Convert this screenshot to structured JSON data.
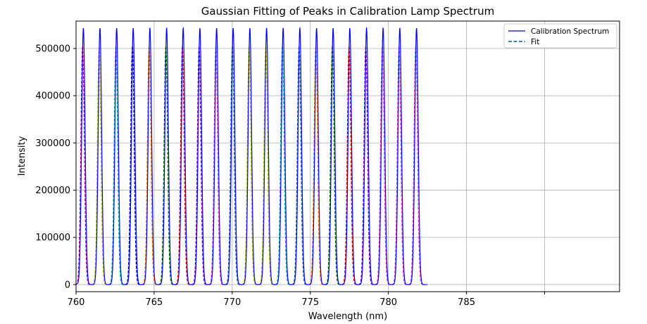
{
  "chart_data": {
    "type": "line",
    "title": "Gaussian Fitting of Peaks in Calibration Lamp Spectrum",
    "xlabel": "Wavelength (nm)",
    "ylabel": "Intensity",
    "xlim": [
      760,
      794.8
    ],
    "ylim": [
      -15000,
      558000
    ],
    "xticks": [
      760,
      765,
      770,
      775,
      780,
      785,
      790
    ],
    "xtick_labels": [
      "760",
      "765",
      "770",
      "775",
      "780",
      "785",
      ""
    ],
    "yticks": [
      0,
      100000,
      200000,
      300000,
      400000,
      500000
    ],
    "ytick_labels": [
      "0",
      "100000",
      "200000",
      "300000",
      "400000",
      "500000"
    ],
    "grid": true,
    "legend": {
      "placement": "top-right",
      "entries": [
        {
          "label": "Calibration Spectrum",
          "color": "#0000ff",
          "style": "solid"
        },
        {
          "label": "Fit",
          "color": "#1f77b4",
          "style": "dashed"
        }
      ]
    },
    "spectrum": {
      "name": "Calibration Spectrum",
      "color": "#0000ff",
      "x_range": [
        760.1,
        782.5
      ],
      "peak_height": 543000,
      "peak_sigma": 0.11,
      "peak_centers": [
        760.47,
        761.53,
        762.6,
        763.66,
        764.73,
        765.8,
        766.86,
        767.93,
        769.0,
        770.06,
        771.13,
        772.2,
        773.26,
        774.33,
        775.4,
        776.46,
        777.53,
        778.6,
        779.66,
        780.73,
        781.8
      ]
    },
    "fits": {
      "name": "Fit",
      "peak_height": 505000,
      "peak_sigma": 0.11,
      "half_width": 0.48,
      "centers": [
        760.42,
        761.48,
        762.55,
        763.61,
        764.68,
        765.75,
        766.81,
        767.88,
        768.95,
        770.01,
        771.08,
        772.15,
        773.21,
        774.28,
        775.35,
        776.41,
        777.48,
        778.55,
        779.61,
        780.68,
        781.75
      ],
      "colors": [
        "#bf00bf",
        "#bfbf00",
        "#00bfbf",
        "#0000ff",
        "#ff7f0e",
        "#008000",
        "#ff0000",
        "#8f00ff",
        "#ee44ee",
        "#1f77b4",
        "#bfbf00",
        "#bfbf00",
        "#00bfbf",
        "#1f77b4",
        "#ff7f0e",
        "#008000",
        "#ff0000",
        "#8f00ff",
        "#ee44ee",
        "#ee44ee",
        "#ee44ee"
      ]
    }
  }
}
